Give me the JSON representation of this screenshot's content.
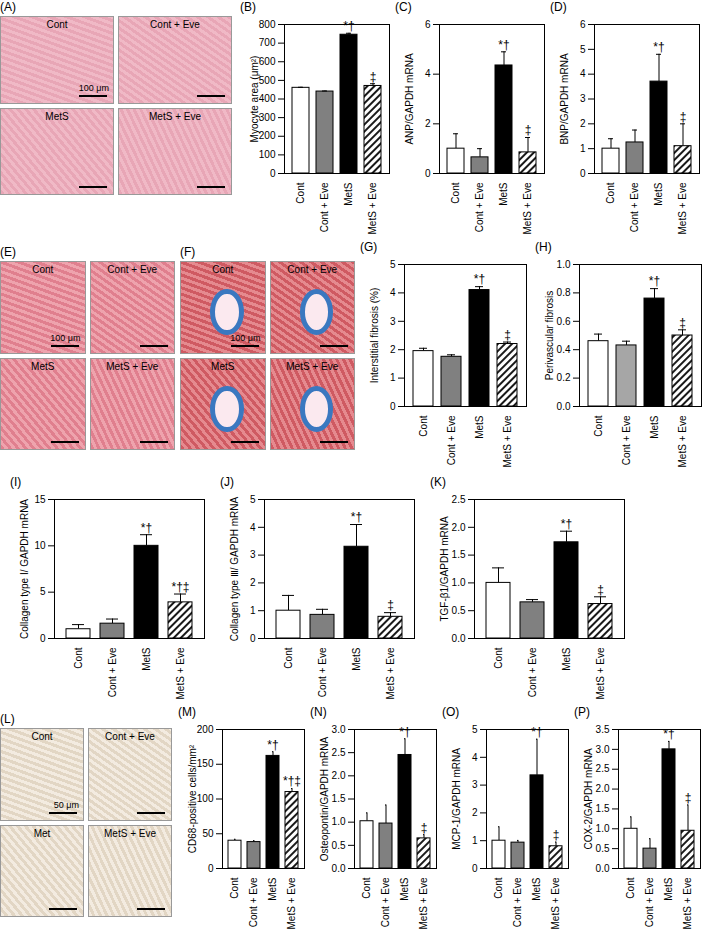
{
  "chart_data": [
    {
      "type": "bar",
      "title": "(B)",
      "categories": [
        "Cont",
        "Cont + Eve",
        "MetS",
        "MetS + Eve"
      ],
      "values": [
        460,
        440,
        745,
        470
      ],
      "errors": [
        3,
        3,
        8,
        12
      ],
      "significance": [
        null,
        null,
        "*†",
        "‡"
      ],
      "colors": [
        "#ffffff",
        "#808080",
        "#000000",
        "hatched"
      ],
      "ylabel": "Myocyte area (μm²)",
      "ylim": [
        0,
        800
      ],
      "yticks": [
        0,
        100,
        200,
        300,
        400,
        500,
        600,
        700,
        800
      ]
    },
    {
      "type": "bar",
      "title": "(C)",
      "categories": [
        "Cont",
        "Cont + Eve",
        "MetS",
        "MetS + Eve"
      ],
      "values": [
        1.0,
        0.65,
        4.35,
        0.85
      ],
      "errors": [
        0.6,
        0.35,
        0.55,
        0.6
      ],
      "significance": [
        null,
        null,
        "*†",
        "‡"
      ],
      "colors": [
        "#ffffff",
        "#808080",
        "#000000",
        "hatched"
      ],
      "ylabel": "ANP/GAPDH mRNA",
      "ylim": [
        0,
        6
      ],
      "yticks": [
        0,
        2,
        4,
        6
      ]
    },
    {
      "type": "bar",
      "title": "(D)",
      "categories": [
        "Cont",
        "Cont + Eve",
        "MetS",
        "MetS + Eve"
      ],
      "values": [
        1.0,
        1.25,
        3.7,
        1.1
      ],
      "errors": [
        0.4,
        0.5,
        1.1,
        0.9
      ],
      "significance": [
        null,
        null,
        "*†",
        "‡"
      ],
      "colors": [
        "#ffffff",
        "#808080",
        "#000000",
        "hatched"
      ],
      "ylabel": "BNP/GAPDH mRNA",
      "ylim": [
        0,
        6
      ],
      "yticks": [
        0,
        1,
        2,
        3,
        4,
        5,
        6
      ]
    },
    {
      "type": "bar",
      "title": "(G)",
      "categories": [
        "Cont",
        "Cont + Eve",
        "MetS",
        "MetS + Eve"
      ],
      "values": [
        1.95,
        1.75,
        4.1,
        2.2
      ],
      "errors": [
        0.1,
        0.07,
        0.12,
        0.07
      ],
      "significance": [
        null,
        null,
        "*†",
        "‡"
      ],
      "colors": [
        "#ffffff",
        "#808080",
        "#000000",
        "hatched"
      ],
      "ylabel": "Interstitial fibrosis (%)",
      "ylim": [
        0,
        5
      ],
      "yticks": [
        0,
        1,
        2,
        3,
        4,
        5
      ]
    },
    {
      "type": "bar",
      "title": "(H)",
      "categories": [
        "Cont",
        "Cont + Eve",
        "MetS",
        "MetS + Eve"
      ],
      "values": [
        0.46,
        0.43,
        0.76,
        0.5
      ],
      "errors": [
        0.05,
        0.03,
        0.07,
        0.04
      ],
      "significance": [
        null,
        null,
        "*†",
        "‡"
      ],
      "colors": [
        "#ffffff",
        "#a6a6a6",
        "#000000",
        "hatched"
      ],
      "ylabel": "Perivascular fibrosis",
      "ylim": [
        0,
        1
      ],
      "yticks": [
        {
          "value": 0,
          "label": "0.0"
        },
        0.2,
        0.4,
        0.6,
        0.8,
        {
          "value": 1,
          "label": "1.0"
        }
      ]
    },
    {
      "type": "bar",
      "title": "(I)",
      "categories": [
        "Cont",
        "Cont + Eve",
        "MetS",
        "MetS + Eve"
      ],
      "values": [
        1.0,
        1.6,
        10.0,
        3.9
      ],
      "errors": [
        0.5,
        0.5,
        1.2,
        0.9
      ],
      "significance": [
        null,
        null,
        "*†",
        "*†‡"
      ],
      "colors": [
        "#ffffff",
        "#808080",
        "#000000",
        "hatched"
      ],
      "ylabel": "Collagen type I/ GAPDH mRNA",
      "ylim": [
        0,
        15
      ],
      "yticks": [
        0,
        5,
        10,
        15
      ]
    },
    {
      "type": "bar",
      "title": "(J)",
      "categories": [
        "Cont",
        "Cont + Eve",
        "MetS",
        "MetS + Eve"
      ],
      "values": [
        1.0,
        0.85,
        3.3,
        0.78
      ],
      "errors": [
        0.55,
        0.2,
        0.8,
        0.15
      ],
      "significance": [
        null,
        null,
        "*†",
        "‡"
      ],
      "colors": [
        "#ffffff",
        "#808080",
        "#000000",
        "hatched"
      ],
      "ylabel": "Collagen type Ⅲ/ GAPDH mRNA",
      "ylim": [
        0,
        5
      ],
      "yticks": [
        0,
        1,
        2,
        3,
        4,
        5
      ]
    },
    {
      "type": "bar",
      "title": "(K)",
      "categories": [
        "Cont",
        "Cont + Eve",
        "MetS",
        "MetS + Eve"
      ],
      "values": [
        1.0,
        0.65,
        1.73,
        0.62
      ],
      "errors": [
        0.27,
        0.05,
        0.2,
        0.13
      ],
      "significance": [
        null,
        null,
        "*†",
        "‡"
      ],
      "colors": [
        "#ffffff",
        "#808080",
        "#000000",
        "hatched"
      ],
      "ylabel": "TGF-β1/GAPDH mRNA",
      "ylim": [
        0,
        2.5
      ],
      "yticks": [
        {
          "value": 0,
          "label": "0.0"
        },
        0.5,
        {
          "value": 1,
          "label": "1.0"
        },
        1.5,
        {
          "value": 2,
          "label": "2.0"
        },
        2.5
      ]
    },
    {
      "type": "bar",
      "title": "(M)",
      "categories": [
        "Cont",
        "Cont + Eve",
        "MetS",
        "MetS + Eve"
      ],
      "values": [
        40,
        38,
        162,
        110
      ],
      "errors": [
        2,
        2,
        6,
        5
      ],
      "significance": [
        null,
        null,
        "*†",
        "*†‡"
      ],
      "colors": [
        "#ffffff",
        "#808080",
        "#000000",
        "hatched"
      ],
      "ylabel": "CD68-positive cells/mm²",
      "ylim": [
        0,
        200
      ],
      "yticks": [
        0,
        50,
        100,
        150,
        200
      ]
    },
    {
      "type": "bar",
      "title": "(N)",
      "categories": [
        "Cont",
        "Cont + Eve",
        "MetS",
        "MetS + Eve"
      ],
      "values": [
        1.02,
        0.97,
        2.45,
        0.65
      ],
      "errors": [
        0.18,
        0.4,
        0.35,
        0.08
      ],
      "significance": [
        null,
        null,
        "*†",
        "‡"
      ],
      "colors": [
        "#ffffff",
        "#808080",
        "#000000",
        "hatched"
      ],
      "ylabel": "Osteopontin/GAPDH mRNA",
      "ylim": [
        0,
        3
      ],
      "yticks": [
        {
          "value": 0,
          "label": "0.0"
        },
        0.5,
        {
          "value": 1,
          "label": "1.0"
        },
        1.5,
        {
          "value": 2,
          "label": "2.0"
        },
        2.5,
        {
          "value": 3,
          "label": "3.0"
        }
      ]
    },
    {
      "type": "bar",
      "title": "(O)",
      "categories": [
        "Cont",
        "Cont + Eve",
        "MetS",
        "MetS + Eve"
      ],
      "values": [
        1.0,
        0.93,
        3.35,
        0.8
      ],
      "errors": [
        0.5,
        0.08,
        1.3,
        0.15
      ],
      "significance": [
        null,
        null,
        "*†",
        "‡"
      ],
      "colors": [
        "#ffffff",
        "#808080",
        "#000000",
        "hatched"
      ],
      "ylabel": "MCP-1/GAPDH mRNA",
      "ylim": [
        0,
        5
      ],
      "yticks": [
        0,
        1,
        2,
        3,
        4,
        5
      ]
    },
    {
      "type": "bar",
      "title": "(P)",
      "categories": [
        "Cont",
        "Cont + Eve",
        "MetS",
        "MetS + Eve"
      ],
      "values": [
        1.0,
        0.5,
        3.0,
        0.95
      ],
      "errors": [
        0.3,
        0.25,
        0.2,
        0.65
      ],
      "significance": [
        null,
        null,
        "*†",
        "‡"
      ],
      "colors": [
        "#ffffff",
        "#808080",
        "#000000",
        "hatched"
      ],
      "ylabel": "COX-2/GAPDH mRNA",
      "ylim": [
        0,
        3.5
      ],
      "yticks": [
        {
          "value": 0,
          "label": "0.0"
        },
        0.5,
        {
          "value": 1,
          "label": "1.0"
        },
        1.5,
        {
          "value": 2,
          "label": "2.0"
        },
        2.5,
        {
          "value": 3,
          "label": "3.0"
        },
        3.5
      ]
    }
  ],
  "images": [
    {
      "title": "(A)",
      "labels": [
        "Cont",
        "Cont + Eve",
        "MetS",
        "MetS + Eve"
      ],
      "scale_bar": "100 μm"
    },
    {
      "title": "(E)",
      "labels": [
        "Cont",
        "Cont + Eve",
        "MetS",
        "MetS + Eve"
      ],
      "scale_bar": "100 μm"
    },
    {
      "title": "(F)",
      "labels": [
        "Cont",
        "Cont + Eve",
        "MetS",
        "MetS + Eve"
      ],
      "scale_bar": "100 μm"
    },
    {
      "title": "(L)",
      "labels": [
        "Cont",
        "Cont + Eve",
        "Met",
        "MetS + Eve"
      ],
      "scale_bar": "50 μm"
    }
  ]
}
